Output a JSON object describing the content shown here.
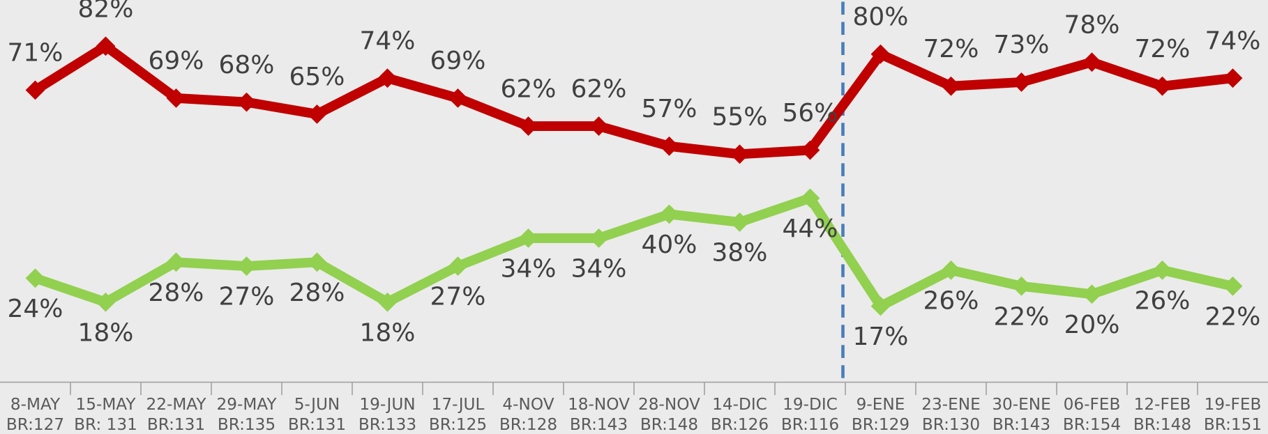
{
  "chart_data": {
    "type": "line",
    "categories": [
      [
        "8-MAY",
        "BR:127"
      ],
      [
        "15-MAY",
        "BR: 131"
      ],
      [
        "22-MAY",
        "BR:131"
      ],
      [
        "29-MAY",
        "BR:135"
      ],
      [
        "5-JUN",
        "BR:131"
      ],
      [
        "19-JUN",
        "BR:133"
      ],
      [
        "17-JUL",
        "BR:125"
      ],
      [
        "4-NOV",
        "BR:128"
      ],
      [
        "18-NOV",
        "BR:143"
      ],
      [
        "28-NOV",
        "BR:148"
      ],
      [
        "14-DIC",
        "BR:126"
      ],
      [
        "19-DIC",
        "BR:116"
      ],
      [
        "9-ENE",
        "BR:129"
      ],
      [
        "23-ENE",
        "BR:130"
      ],
      [
        "30-ENE",
        "BR:143"
      ],
      [
        "06-FEB",
        "BR:154"
      ],
      [
        "12-FEB",
        "BR:148"
      ],
      [
        "19-FEB",
        "BR:151"
      ]
    ],
    "series": [
      {
        "color": "#c00000",
        "label_position": "above",
        "values": [
          71,
          82,
          69,
          68,
          65,
          74,
          69,
          62,
          62,
          57,
          55,
          56,
          80,
          72,
          73,
          78,
          72,
          74
        ],
        "value_labels": [
          "71%",
          "82%",
          "69%",
          "68%",
          "65%",
          "74%",
          "69%",
          "62%",
          "62%",
          "57%",
          "55%",
          "56%",
          "80%",
          "72%",
          "73%",
          "78%",
          "72%",
          "74%"
        ]
      },
      {
        "color": "#92d050",
        "label_position": "below",
        "values": [
          24,
          18,
          28,
          27,
          28,
          18,
          27,
          34,
          34,
          40,
          38,
          44,
          17,
          26,
          22,
          20,
          26,
          22
        ],
        "value_labels": [
          "24%",
          "18%",
          "28%",
          "27%",
          "28%",
          "18%",
          "27%",
          "34%",
          "34%",
          "40%",
          "38%",
          "44%",
          "17%",
          "26%",
          "22%",
          "20%",
          "26%",
          "22%"
        ]
      }
    ],
    "ylim": [
      -2,
      93.5
    ],
    "divider_index": 12,
    "divider_color": "#4a7ebb"
  }
}
